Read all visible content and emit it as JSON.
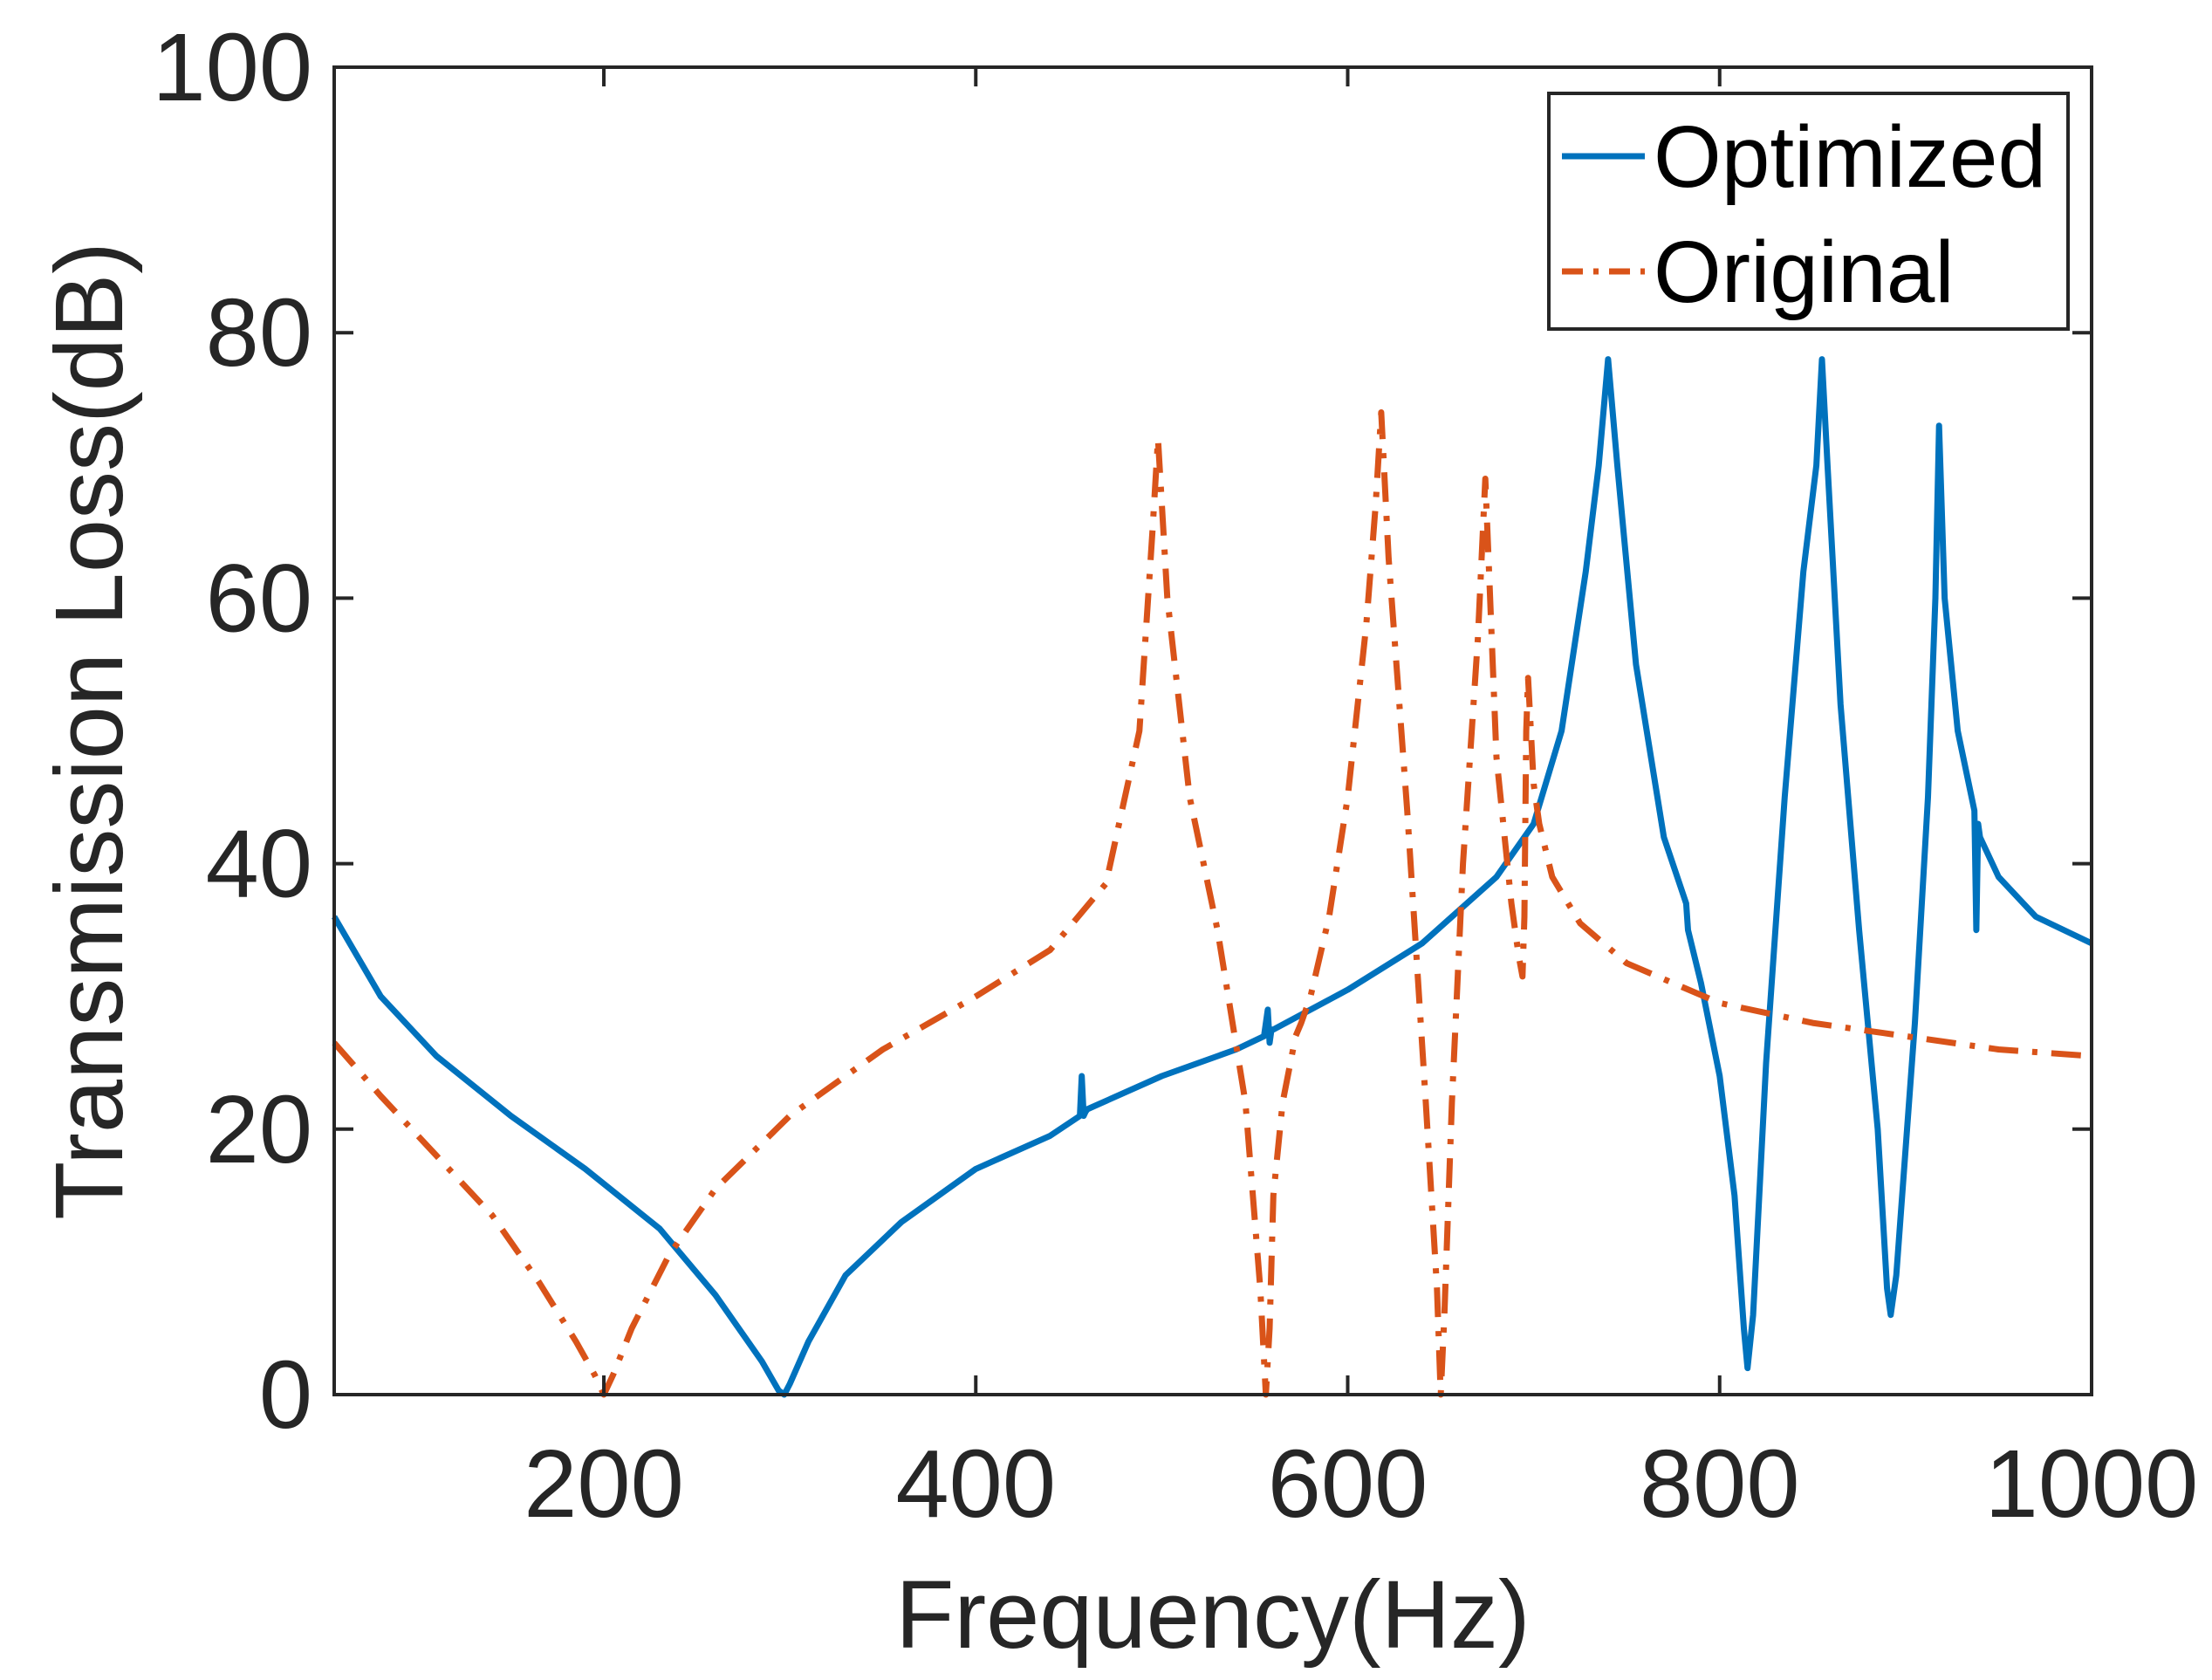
{
  "chart_data": {
    "type": "line",
    "xlabel": "Frequency(Hz)",
    "ylabel": "Transmission Loss(dB)",
    "xlim": [
      55,
      1000
    ],
    "ylim": [
      0,
      100
    ],
    "xticks": [
      200,
      400,
      600,
      800,
      1000
    ],
    "yticks": [
      0,
      20,
      40,
      60,
      80,
      100
    ],
    "grid": false,
    "legend_position": "top-right",
    "series": [
      {
        "name": "Optimized",
        "color": "#0072BD",
        "style": "solid",
        "x": [
          55,
          80,
          110,
          150,
          190,
          230,
          260,
          285,
          294,
          297,
          300,
          310,
          330,
          360,
          400,
          440,
          456,
          457,
          458,
          459,
          460,
          500,
          540,
          555,
          557,
          558,
          559,
          560,
          600,
          640,
          680,
          700,
          715,
          728,
          735,
          740,
          745,
          755,
          770,
          782,
          783,
          790,
          800,
          808,
          813,
          815,
          818,
          825,
          835,
          845,
          852,
          855,
          858,
          865,
          875,
          885,
          890,
          892,
          895,
          905,
          912,
          916,
          918,
          921,
          928,
          937,
          938,
          939,
          940,
          950,
          970,
          1000
        ],
        "y": [
          36,
          30,
          25.5,
          21,
          17,
          12.5,
          7.5,
          2.5,
          0.3,
          0,
          0.8,
          4,
          9,
          13,
          17,
          19.5,
          21,
          24,
          21,
          21.3,
          21.5,
          24,
          26,
          27,
          29,
          26.5,
          27.5,
          27.5,
          30.5,
          34,
          39,
          43,
          50,
          62,
          70,
          78,
          70,
          55,
          42,
          37,
          35,
          31,
          24,
          15,
          5,
          2,
          6,
          25,
          45,
          62,
          70,
          78,
          70,
          52,
          35,
          20,
          8,
          6,
          9,
          28,
          45,
          60,
          73,
          60,
          50,
          44,
          35,
          43,
          42,
          39,
          36,
          34
        ]
      },
      {
        "name": "Original",
        "color": "#D95319",
        "style": "dashdot",
        "x": [
          55,
          80,
          110,
          140,
          165,
          185,
          195,
          200,
          205,
          215,
          235,
          260,
          300,
          350,
          400,
          440,
          470,
          488,
          495,
          498,
          503,
          515,
          530,
          545,
          553,
          556,
          558,
          560,
          565,
          572,
          575,
          580,
          590,
          600,
          610,
          615,
          618,
          622,
          632,
          642,
          648,
          650,
          652,
          656,
          662,
          670,
          674,
          676,
          680,
          688,
          692,
          694,
          695,
          696,
          697,
          700,
          703,
          710,
          725,
          750,
          800,
          850,
          900,
          950,
          1000
        ],
        "y": [
          26.5,
          22.5,
          18,
          13.5,
          8.5,
          4,
          1.5,
          0,
          1.5,
          5,
          10.5,
          15.5,
          21,
          26,
          30,
          33.5,
          38.5,
          50,
          65,
          72,
          60,
          45,
          35,
          22,
          8,
          0,
          5,
          15,
          22,
          27,
          28,
          30,
          36,
          45,
          58,
          67,
          74,
          63,
          44,
          22,
          8,
          0,
          6,
          22,
          40,
          57,
          69,
          62,
          48,
          37,
          33,
          31.5,
          36,
          50,
          54,
          46,
          43,
          39,
          35.5,
          32.5,
          29.5,
          28,
          27,
          26,
          25.5
        ]
      }
    ]
  }
}
